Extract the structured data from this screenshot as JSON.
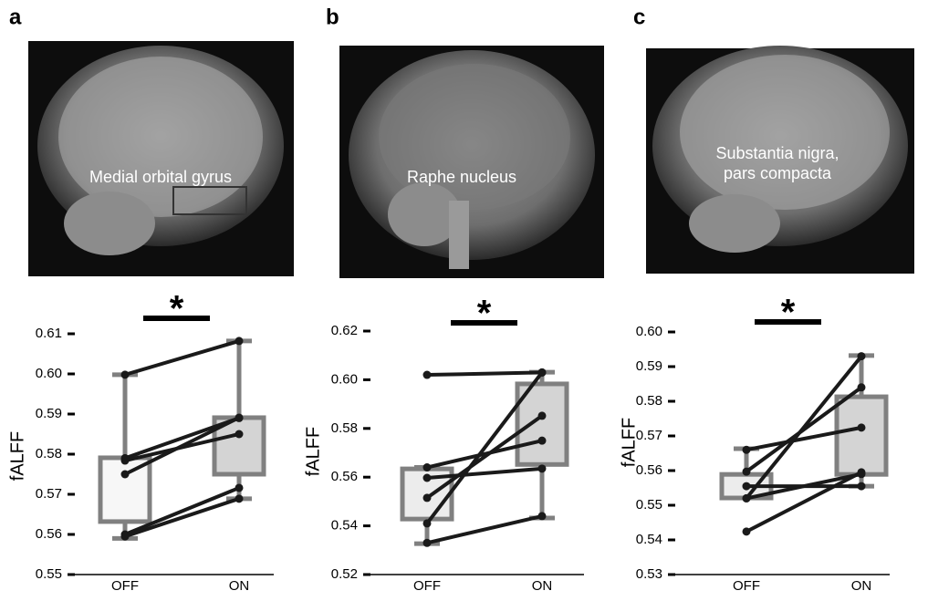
{
  "chart_data": [
    {
      "type": "box",
      "letter": "a",
      "image_label": [
        "Medial orbital gyrus"
      ],
      "ylabel": "fALFF",
      "categories": [
        "OFF",
        "ON"
      ],
      "significance": "*",
      "ylim": [
        0.55,
        0.61
      ],
      "yticks": [
        0.55,
        0.56,
        0.57,
        0.58,
        0.59,
        {
          "value": 0.6,
          "label": "0.60"
        },
        0.61
      ],
      "box_colors": [
        "#f7f7f7",
        "#d4d4d4"
      ],
      "edge_color": "#808080",
      "line_color": "#1a1a1a",
      "boxes": [
        {
          "q1": 0.5632,
          "q3": 0.5791,
          "whislo": 0.559,
          "whishi": 0.5998
        },
        {
          "q1": 0.575,
          "q3": 0.5891,
          "whislo": 0.5689,
          "whishi": 0.6082
        }
      ],
      "series": [
        {
          "values": [
            0.5998,
            0.6082
          ]
        },
        {
          "values": [
            0.579,
            0.589
          ]
        },
        {
          "values": [
            0.575,
            0.5891
          ]
        },
        {
          "values": [
            0.5784,
            0.585
          ]
        },
        {
          "values": [
            0.56,
            0.5716
          ]
        },
        {
          "values": [
            0.5595,
            0.5689
          ]
        }
      ]
    },
    {
      "type": "box",
      "letter": "b",
      "image_label": [
        "Raphe nucleus"
      ],
      "ylabel": "fALFF",
      "categories": [
        "OFF",
        "ON"
      ],
      "significance": "*",
      "ylim": [
        0.52,
        0.62
      ],
      "yticks": [
        0.52,
        0.54,
        0.56,
        0.58,
        {
          "value": 0.6,
          "label": "0.60"
        },
        0.62
      ],
      "box_colors": [
        "#ececec",
        "#d4d4d4"
      ],
      "edge_color": "#808080",
      "line_color": "#1a1a1a",
      "boxes": [
        {
          "q1": 0.5428,
          "q3": 0.5634,
          "whislo": 0.5327,
          "whishi": 0.564
        },
        {
          "q1": 0.5652,
          "q3": 0.5983,
          "whislo": 0.5432,
          "whishi": 0.6031
        }
      ],
      "series": [
        {
          "values": [
            0.602,
            0.603
          ]
        },
        {
          "values": [
            0.564,
            0.575
          ]
        },
        {
          "values": [
            0.5597,
            0.5635
          ]
        },
        {
          "values": [
            0.5515,
            0.5852
          ]
        },
        {
          "values": [
            0.541,
            0.603
          ]
        },
        {
          "values": [
            0.533,
            0.544
          ]
        }
      ]
    },
    {
      "type": "box",
      "letter": "c",
      "image_label": [
        "Substantia nigra,",
        "pars compacta"
      ],
      "ylabel": "fALFF",
      "categories": [
        "OFF",
        "ON"
      ],
      "significance": "*",
      "ylim": [
        0.53,
        0.6
      ],
      "yticks": [
        0.53,
        0.54,
        0.55,
        0.56,
        0.57,
        0.58,
        0.59,
        {
          "value": 0.6,
          "label": "0.60"
        }
      ],
      "box_colors": [
        "#ececec",
        "#d4d4d4"
      ],
      "edge_color": "#808080",
      "line_color": "#1a1a1a",
      "boxes": [
        {
          "q1": 0.5521,
          "q3": 0.5589,
          "whislo": 0.5521,
          "whishi": 0.5663
        },
        {
          "q1": 0.5589,
          "q3": 0.5813,
          "whislo": 0.5555,
          "whishi": 0.5932
        }
      ],
      "series": [
        {
          "values": [
            0.566,
            0.5724
          ]
        },
        {
          "values": [
            0.5597,
            0.584
          ]
        },
        {
          "values": [
            0.552,
            0.593
          ]
        },
        {
          "values": [
            0.5555,
            0.5555
          ]
        },
        {
          "values": [
            0.5424,
            0.5595
          ]
        },
        {
          "values": [
            0.552,
            0.559
          ]
        }
      ]
    }
  ]
}
